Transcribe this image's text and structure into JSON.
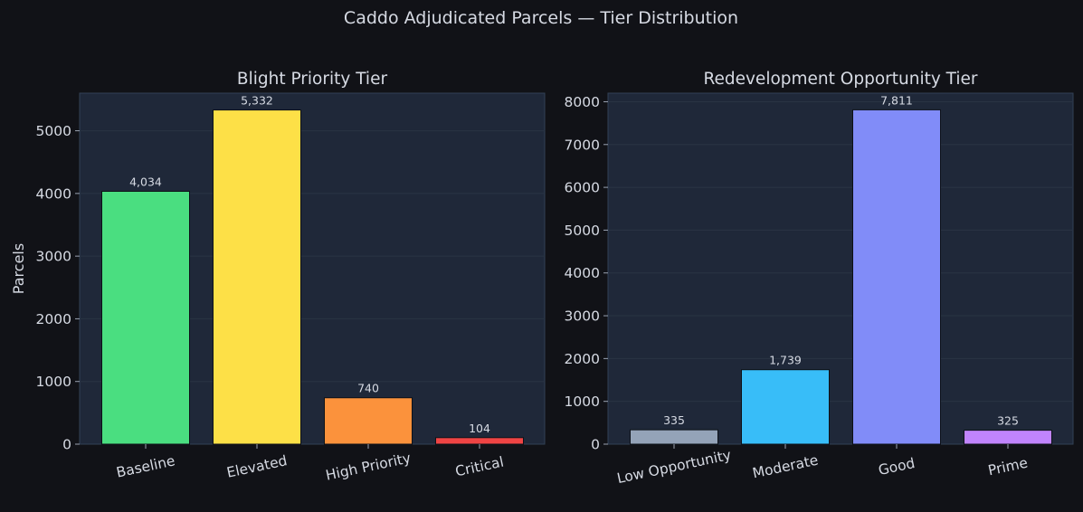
{
  "title": "Caddo Adjudicated Parcels — Tier Distribution",
  "colors": {
    "background": "#111217",
    "panel": "#1f2839",
    "text": "#d6dae3"
  },
  "chart_data": [
    {
      "type": "bar",
      "title": "Blight Priority Tier",
      "ylabel": "Parcels",
      "xlabel": "",
      "categories": [
        "Baseline",
        "Elevated",
        "High Priority",
        "Critical"
      ],
      "values": [
        4034,
        5332,
        740,
        104
      ],
      "value_labels": [
        "4,034",
        "5,332",
        "740",
        "104"
      ],
      "colors": [
        "#4ade80",
        "#fde047",
        "#fb923c",
        "#ef4444"
      ],
      "ylim": [
        0,
        5600
      ],
      "yticks": [
        0,
        1000,
        2000,
        3000,
        4000,
        5000
      ],
      "grid": true
    },
    {
      "type": "bar",
      "title": "Redevelopment Opportunity Tier",
      "ylabel": "",
      "xlabel": "",
      "categories": [
        "Low Opportunity",
        "Moderate",
        "Good",
        "Prime"
      ],
      "values": [
        335,
        1739,
        7811,
        325
      ],
      "value_labels": [
        "335",
        "1,739",
        "7,811",
        "325"
      ],
      "colors": [
        "#94a3b8",
        "#38bdf8",
        "#818cf8",
        "#c084fc"
      ],
      "ylim": [
        0,
        8200
      ],
      "yticks": [
        0,
        1000,
        2000,
        3000,
        4000,
        5000,
        6000,
        7000,
        8000
      ],
      "grid": true
    }
  ]
}
